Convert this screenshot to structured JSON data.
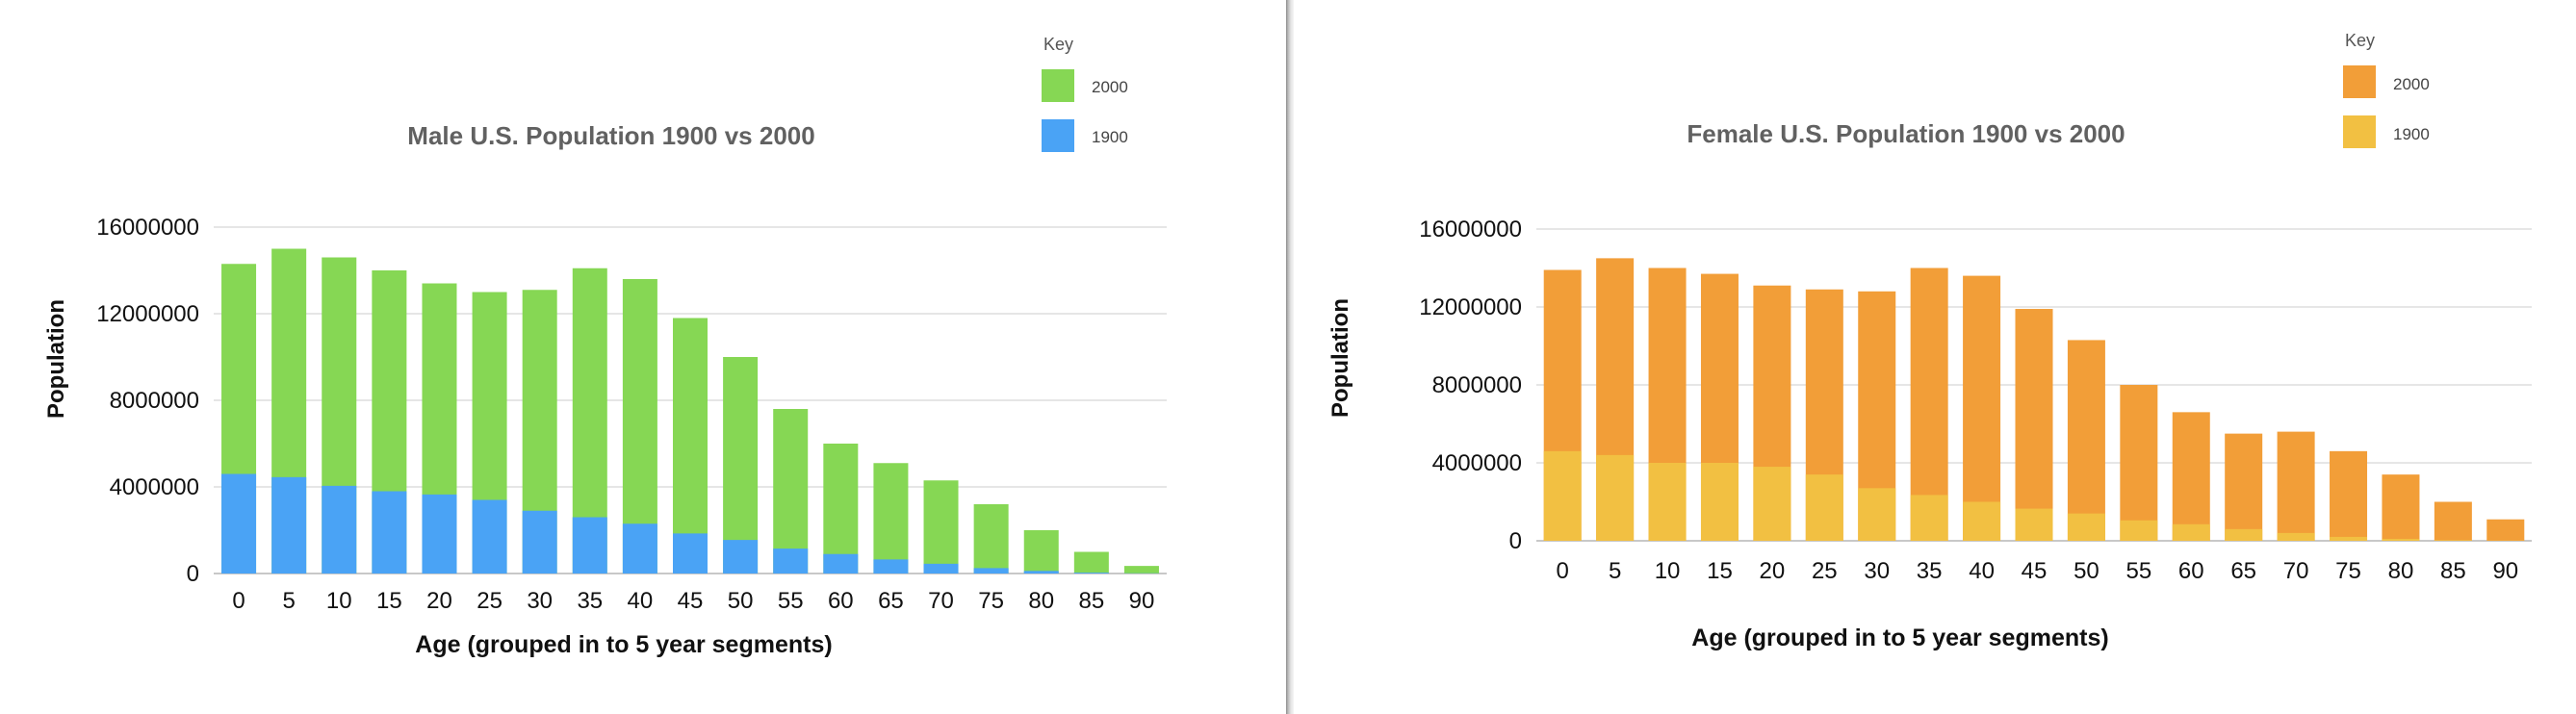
{
  "chart_data": [
    {
      "type": "bar",
      "stacked": false,
      "overlap": true,
      "title": "Male U.S. Population 1900 vs 2000",
      "xlabel": "Age (grouped in to 5 year segments)",
      "ylabel": "Population",
      "ylim": [
        0,
        16000000
      ],
      "yticks": [
        "0",
        "4000000",
        "8000000",
        "12000000",
        "16000000"
      ],
      "grid": true,
      "legend_title": "Key",
      "legend_position": "top-right",
      "categories": [
        "0",
        "5",
        "10",
        "15",
        "20",
        "25",
        "30",
        "35",
        "40",
        "45",
        "50",
        "55",
        "60",
        "65",
        "70",
        "75",
        "80",
        "85",
        "90"
      ],
      "series": [
        {
          "name": "2000",
          "color": "#86d754",
          "values": [
            14300000,
            15000000,
            14600000,
            14000000,
            13400000,
            13000000,
            13100000,
            14100000,
            13600000,
            11800000,
            10000000,
            7600000,
            6000000,
            5100000,
            4300000,
            3200000,
            2000000,
            1000000,
            350000
          ]
        },
        {
          "name": "1900",
          "color": "#4aa3f5",
          "values": [
            4600000,
            4450000,
            4050000,
            3800000,
            3650000,
            3400000,
            2900000,
            2600000,
            2300000,
            1850000,
            1550000,
            1150000,
            900000,
            650000,
            450000,
            250000,
            120000,
            40000,
            10000
          ]
        }
      ]
    },
    {
      "type": "bar",
      "stacked": false,
      "overlap": true,
      "title": "Female U.S. Population 1900 vs 2000",
      "xlabel": "Age (grouped in to 5 year segments)",
      "ylabel": "Population",
      "ylim": [
        0,
        16000000
      ],
      "yticks": [
        "0",
        "4000000",
        "8000000",
        "12000000",
        "16000000"
      ],
      "grid": true,
      "legend_title": "Key",
      "legend_position": "top-right",
      "categories": [
        "0",
        "5",
        "10",
        "15",
        "20",
        "25",
        "30",
        "35",
        "40",
        "45",
        "50",
        "55",
        "60",
        "65",
        "70",
        "75",
        "80",
        "85",
        "90"
      ],
      "series": [
        {
          "name": "2000",
          "color": "#f29e38",
          "values": [
            13900000,
            14500000,
            14000000,
            13700000,
            13100000,
            12900000,
            12800000,
            14000000,
            13600000,
            11900000,
            10300000,
            8000000,
            6600000,
            5500000,
            5600000,
            4600000,
            3400000,
            2000000,
            1100000
          ]
        },
        {
          "name": "1900",
          "color": "#f2c042",
          "values": [
            4600000,
            4400000,
            4000000,
            4000000,
            3800000,
            3400000,
            2700000,
            2350000,
            2000000,
            1650000,
            1400000,
            1050000,
            850000,
            600000,
            400000,
            200000,
            100000,
            30000,
            10000
          ]
        }
      ]
    }
  ]
}
